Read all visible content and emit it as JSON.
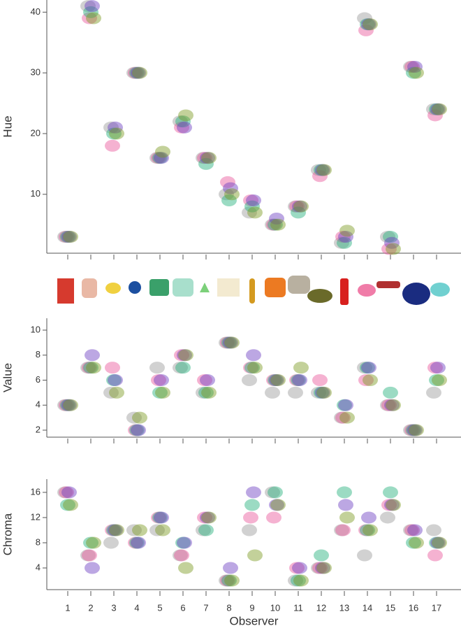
{
  "chart_data": [
    {
      "type": "dot",
      "y_label": "Hue",
      "ylim": [
        0.3,
        42
      ],
      "yticks": [
        10,
        20,
        30,
        40
      ],
      "series": [
        {
          "color": "#9a9a9a",
          "values": [
            3,
            41,
            21,
            30,
            16,
            22,
            16,
            10,
            7,
            5,
            8,
            14,
            2,
            39,
            3,
            31,
            24
          ]
        },
        {
          "color": "#e8559a",
          "values": [
            3,
            39,
            18,
            30,
            16,
            21,
            16,
            12,
            9,
            5,
            8,
            13,
            3,
            37,
            1,
            31,
            23
          ]
        },
        {
          "color": "#22b07a",
          "values": [
            3,
            40,
            20,
            30,
            16,
            22,
            15,
            9,
            8,
            5,
            7,
            14,
            2,
            38,
            3,
            30,
            24
          ]
        },
        {
          "color": "#6a3cc0",
          "values": [
            3,
            41,
            21,
            30,
            16,
            21,
            16,
            11,
            9,
            6,
            8,
            14,
            3,
            38,
            2,
            31,
            24
          ]
        },
        {
          "color": "#7a9a20",
          "values": [
            3,
            39,
            20,
            30,
            17,
            23,
            16,
            10,
            7,
            5,
            8,
            14,
            4,
            38,
            1,
            30,
            24
          ]
        }
      ]
    },
    {
      "type": "dot",
      "y_label": "Value",
      "ylim": [
        1.44,
        10.95
      ],
      "yticks": [
        2,
        4,
        6,
        8,
        10
      ],
      "series": [
        {
          "color": "#9a9a9a",
          "values": [
            4,
            7,
            5,
            3,
            7,
            7,
            5,
            9,
            6,
            5,
            5,
            5,
            3,
            7,
            4,
            2,
            5
          ]
        },
        {
          "color": "#e8559a",
          "values": [
            4,
            7,
            7,
            2,
            6,
            8,
            6,
            9,
            7,
            6,
            6,
            6,
            3,
            6,
            4,
            2,
            7
          ]
        },
        {
          "color": "#22b07a",
          "values": [
            4,
            7,
            6,
            2,
            5,
            7,
            5,
            9,
            7,
            6,
            6,
            5,
            4,
            7,
            5,
            2,
            6
          ]
        },
        {
          "color": "#6a3cc0",
          "values": [
            4,
            8,
            6,
            2,
            6,
            8,
            6,
            9,
            8,
            6,
            6,
            5,
            4,
            7,
            4,
            2,
            7
          ]
        },
        {
          "color": "#7a9a20",
          "values": [
            4,
            7,
            5,
            3,
            5,
            8,
            5,
            9,
            7,
            6,
            7,
            5,
            3,
            6,
            4,
            2,
            6
          ]
        }
      ]
    },
    {
      "type": "dot",
      "y_label": "Chroma",
      "x_label": "Observer",
      "ylim": [
        0.56,
        18.1
      ],
      "yticks": [
        4,
        8,
        12,
        16
      ],
      "categories": [
        "1",
        "2",
        "3",
        "4",
        "5",
        "6",
        "7",
        "8",
        "9",
        "10",
        "11",
        "12",
        "13",
        "14",
        "15",
        "16",
        "17"
      ],
      "series": [
        {
          "color": "#9a9a9a",
          "values": [
            16,
            6,
            8,
            10,
            10,
            6,
            10,
            2,
            10,
            16,
            2,
            4,
            10,
            6,
            12,
            10,
            10
          ]
        },
        {
          "color": "#e8559a",
          "values": [
            16,
            6,
            10,
            8,
            12,
            6,
            12,
            2,
            12,
            12,
            4,
            4,
            10,
            10,
            14,
            10,
            6
          ]
        },
        {
          "color": "#22b07a",
          "values": [
            14,
            8,
            10,
            8,
            12,
            8,
            10,
            2,
            14,
            16,
            2,
            6,
            16,
            10,
            16,
            8,
            8
          ]
        },
        {
          "color": "#6a3cc0",
          "values": [
            16,
            4,
            10,
            8,
            12,
            8,
            12,
            4,
            16,
            14,
            4,
            4,
            14,
            12,
            14,
            10,
            8
          ]
        },
        {
          "color": "#7a9a20",
          "values": [
            14,
            8,
            10,
            10,
            10,
            4,
            12,
            2,
            6,
            14,
            2,
            4,
            12,
            10,
            14,
            8,
            8
          ]
        }
      ]
    }
  ]
}
